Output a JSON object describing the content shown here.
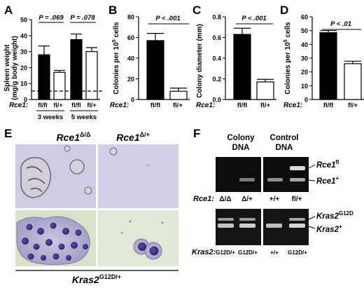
{
  "panels": {
    "A": {
      "letter": "A",
      "ylabel_line1": "Spleen weight",
      "ylabel_line2": "(mg/g body weight)",
      "pvalues": [
        "P = .069",
        "P = .078"
      ],
      "row_label": "Rce1:",
      "genotype_labels": [
        "fl/fl",
        "fl/+",
        "fl/fl",
        "fl/+"
      ],
      "group_labels": [
        "3 weeks",
        "5 weeks"
      ]
    },
    "B": {
      "letter": "B",
      "ylabel_line1": "Colonies per 10",
      "ylabel_sup": "5",
      "ylabel_line2": " cells",
      "pvalue": "P < .001",
      "row_label": "Rce1:",
      "genotype_labels": [
        "fl/fl",
        "fl/+"
      ]
    },
    "C": {
      "letter": "C",
      "ylabel": "Colony diameter (mm)",
      "pvalue": "P < .001",
      "row_label": "Rce1:",
      "genotype_labels": [
        "fl/fl",
        "fl/+"
      ]
    },
    "D": {
      "letter": "D",
      "ylabel_line1": "Colonies per 10",
      "ylabel_sup": "5",
      "ylabel_line2": " cells",
      "pvalue": "P < .01",
      "row_label": "Rce1:",
      "genotype_labels": [
        "fl/fl",
        "fl/+"
      ]
    },
    "E": {
      "letter": "E",
      "col1_base": "Rce1",
      "col1_sup": "Δ/Δ",
      "col2_base": "Rce1",
      "col2_sup": "Δ/+",
      "bottom_base": "Kras2",
      "bottom_sup": "G12D/+"
    },
    "F": {
      "letter": "F",
      "header1_line1": "Colony",
      "header1_line2": "DNA",
      "header2_line1": "Control",
      "header2_line2": "DNA",
      "gel1_row_label": "Rce1:",
      "gel1_lanes": [
        "Δ/Δ",
        "Δ/+",
        "+/+",
        "fl/+"
      ],
      "gel1_band_labels": [
        {
          "base": "Rce1",
          "sup": "fl"
        },
        {
          "base": "Rce1",
          "sup": "+"
        }
      ],
      "gel2_row_label": "Kras2:",
      "gel2_lanes": [
        "G12D/+",
        "G12D/+",
        "+/+",
        "G12D/+"
      ],
      "gel2_band_labels": [
        {
          "base": "Kras2",
          "sup": "G12D"
        },
        {
          "base": "Kras2",
          "sup": "+"
        }
      ]
    }
  },
  "chart_data": [
    {
      "panel": "A",
      "type": "bar",
      "categories": [
        "fl/fl (3 weeks)",
        "fl/+ (3 weeks)",
        "fl/fl (5 weeks)",
        "fl/+ (5 weeks)"
      ],
      "values": [
        28,
        17,
        37.5,
        30
      ],
      "errors": [
        5.5,
        1.2,
        3.5,
        2.5
      ],
      "fills": [
        "black",
        "white",
        "black",
        "white"
      ],
      "ylim": [
        0,
        50
      ],
      "yticks": [
        0,
        10,
        20,
        30,
        40,
        50
      ],
      "reference_line": 4,
      "ylabel": "Spleen weight (mg/g body weight)"
    },
    {
      "panel": "B",
      "type": "bar",
      "categories": [
        "fl/fl",
        "fl/+"
      ],
      "values": [
        57,
        8
      ],
      "errors": [
        7,
        3
      ],
      "fills": [
        "black",
        "white"
      ],
      "ylim": [
        0,
        80
      ],
      "yticks": [
        0,
        20,
        40,
        60,
        80
      ],
      "ylabel": "Colonies per 10^5 cells"
    },
    {
      "panel": "C",
      "type": "bar",
      "categories": [
        "fl/fl",
        "fl/+"
      ],
      "values": [
        0.63,
        0.17
      ],
      "errors": [
        0.06,
        0.025
      ],
      "fills": [
        "black",
        "white"
      ],
      "ylim": [
        0,
        0.8
      ],
      "yticks": [
        0,
        0.2,
        0.4,
        0.6,
        0.8
      ],
      "ylabel": "Colony diameter (mm)"
    },
    {
      "panel": "D",
      "type": "bar",
      "categories": [
        "fl/fl",
        "fl/+"
      ],
      "values": [
        48.5,
        26
      ],
      "errors": [
        1.5,
        1.8
      ],
      "fills": [
        "black",
        "white"
      ],
      "ylim": [
        0,
        60
      ],
      "yticks": [
        0,
        10,
        20,
        30,
        40,
        50,
        60
      ],
      "ylabel": "Colonies per 10^5 cells"
    }
  ]
}
